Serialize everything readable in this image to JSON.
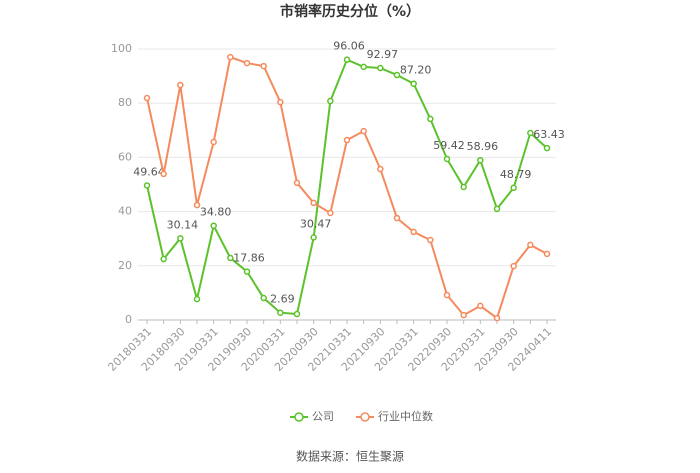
{
  "chart_data": {
    "type": "line",
    "title": "市销率历史分位（%）",
    "categories": [
      "20180331",
      null,
      "20180930",
      null,
      "20190331",
      null,
      "20190930",
      null,
      "20200331",
      null,
      "20200930",
      null,
      "20210331",
      null,
      "20210930",
      null,
      "20220331",
      null,
      "20220930",
      null,
      "20230331",
      null,
      "20230930",
      null,
      "20240411"
    ],
    "series": [
      {
        "name": "公司",
        "color": "#5cc22b",
        "values": [
          49.64,
          22.5,
          30.14,
          7.7,
          34.8,
          22.9,
          17.86,
          8.1,
          2.69,
          2.2,
          30.47,
          80.8,
          96.06,
          93.4,
          92.97,
          90.4,
          87.2,
          74.2,
          59.42,
          49.1,
          58.96,
          41,
          48.79,
          69,
          63.43
        ],
        "value_labels": [
          "49.64",
          null,
          "30.14",
          null,
          "34.80",
          null,
          "17.86",
          null,
          "2.69",
          null,
          "30.47",
          null,
          "96.06",
          null,
          "92.97",
          null,
          "87.20",
          null,
          "59.42",
          null,
          "58.96",
          null,
          "48.79",
          null,
          "63.43"
        ]
      },
      {
        "name": "行业中位数",
        "color": "#f58a5c",
        "values": [
          81.9,
          53.9,
          86.7,
          42.4,
          65.7,
          97,
          94.8,
          93.7,
          80.4,
          50.6,
          43.2,
          39.5,
          66.4,
          69.7,
          55.7,
          37.6,
          32.5,
          29.5,
          9.2,
          1.8,
          5.2,
          0.7,
          19.9,
          27.7,
          24.4
        ]
      }
    ],
    "ylim": [
      0,
      100
    ],
    "yticks": [
      0,
      20,
      40,
      60,
      80,
      100
    ],
    "grid": true,
    "source": "数据来源：恒生聚源"
  }
}
